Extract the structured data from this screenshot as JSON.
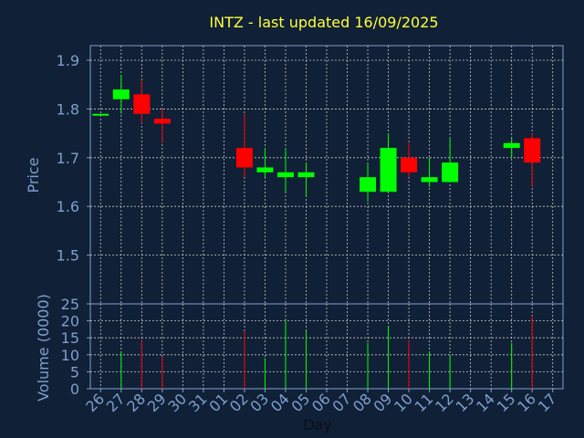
{
  "chart_data": {
    "type": "candlestick",
    "title": "INTZ - last updated 16/09/2025",
    "xlabel": "Day",
    "x_ticks": [
      "26",
      "27",
      "28",
      "29",
      "30",
      "31",
      "01",
      "02",
      "03",
      "04",
      "05",
      "06",
      "07",
      "08",
      "09",
      "10",
      "11",
      "12",
      "13",
      "14",
      "15",
      "16",
      "17"
    ],
    "price": {
      "ylabel": "Price",
      "ylim": [
        1.4,
        1.93
      ],
      "ticks": [
        "1.5",
        "1.6",
        "1.7",
        "1.8",
        "1.9"
      ],
      "tick_values": [
        1.5,
        1.6,
        1.7,
        1.8,
        1.9
      ]
    },
    "volume": {
      "ylabel": "Volume (0000)",
      "ylim": [
        0,
        25
      ],
      "ticks": [
        "0",
        "5",
        "10",
        "15",
        "20",
        "25"
      ],
      "tick_values": [
        0,
        5,
        10,
        15,
        20,
        25
      ]
    },
    "candles": [
      {
        "day": "26",
        "open": 1.79,
        "high": 1.79,
        "low": 1.79,
        "close": 1.79,
        "volume": 0
      },
      {
        "day": "27",
        "open": 1.82,
        "high": 1.87,
        "low": 1.79,
        "close": 1.84,
        "volume": 11
      },
      {
        "day": "28",
        "open": 1.83,
        "high": 1.86,
        "low": 1.77,
        "close": 1.79,
        "volume": 14.5
      },
      {
        "day": "29",
        "open": 1.78,
        "high": 1.8,
        "low": 1.73,
        "close": 1.77,
        "volume": 9.5
      },
      {
        "day": "02",
        "open": 1.72,
        "high": 1.79,
        "low": 1.66,
        "close": 1.68,
        "volume": 17
      },
      {
        "day": "03",
        "open": 1.67,
        "high": 1.72,
        "low": 1.66,
        "close": 1.68,
        "volume": 9
      },
      {
        "day": "04",
        "open": 1.66,
        "high": 1.72,
        "low": 1.63,
        "close": 1.67,
        "volume": 20
      },
      {
        "day": "05",
        "open": 1.66,
        "high": 1.69,
        "low": 1.62,
        "close": 1.67,
        "volume": 17
      },
      {
        "day": "08",
        "open": 1.63,
        "high": 1.69,
        "low": 1.61,
        "close": 1.66,
        "volume": 13.5
      },
      {
        "day": "09",
        "open": 1.63,
        "high": 1.75,
        "low": 1.63,
        "close": 1.72,
        "volume": 18.5
      },
      {
        "day": "10",
        "open": 1.7,
        "high": 1.73,
        "low": 1.66,
        "close": 1.67,
        "volume": 14.5
      },
      {
        "day": "11",
        "open": 1.65,
        "high": 1.7,
        "low": 1.64,
        "close": 1.66,
        "volume": 11
      },
      {
        "day": "12",
        "open": 1.65,
        "high": 1.74,
        "low": 1.65,
        "close": 1.69,
        "volume": 10
      },
      {
        "day": "15",
        "open": 1.72,
        "high": 1.74,
        "low": 1.7,
        "close": 1.73,
        "volume": 13.5
      },
      {
        "day": "16",
        "open": 1.74,
        "high": 1.75,
        "low": 1.64,
        "close": 1.69,
        "volume": 21.5
      }
    ],
    "colors": {
      "background": "#102036",
      "plot_border": "#7f9fcf",
      "grid": "#c8c8c8",
      "up": "#00ff00",
      "down": "#ff0000",
      "title": "#ffff3f",
      "axis_text": "#7f9fcf"
    },
    "grid": true
  }
}
